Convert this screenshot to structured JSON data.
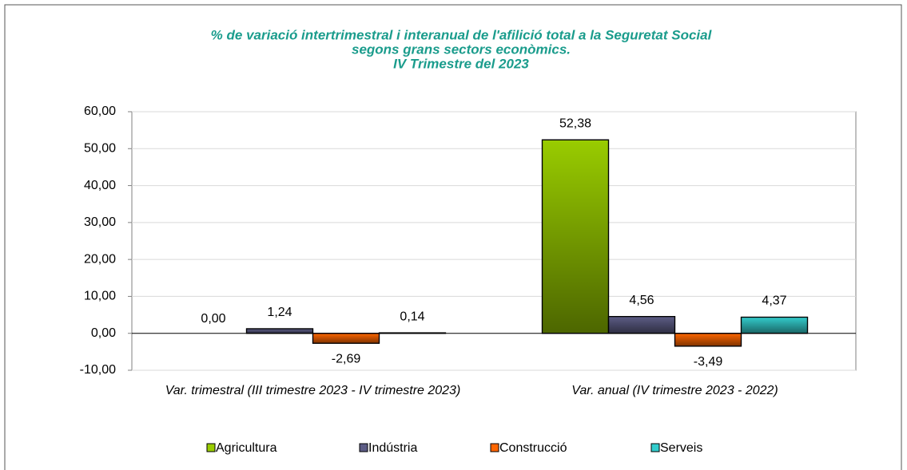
{
  "chart_data": {
    "type": "bar",
    "title": [
      "% de variació intertrimestral i interanual de l'afilició total a la Seguretat Social",
      "segons grans sectors econòmics.",
      "IV Trimestre del 2023"
    ],
    "categories": [
      "Var. trimestral (III trimestre 2023 - IV trimestre 2023)",
      "Var. anual (IV trimestre 2023 - 2022)"
    ],
    "series": [
      {
        "name": "Agricultura",
        "color": "#99cc00",
        "values": [
          0.0,
          52.38
        ],
        "value_labels": [
          "0,00",
          "52,38"
        ]
      },
      {
        "name": "Indústria",
        "color": "#5c5c85",
        "values": [
          1.24,
          4.56
        ],
        "value_labels": [
          "1,24",
          "4,56"
        ]
      },
      {
        "name": "Construcció",
        "color": "#ff6600",
        "values": [
          -2.69,
          -3.49
        ],
        "value_labels": [
          "-2,69",
          "-3,49"
        ]
      },
      {
        "name": "Serveis",
        "color": "#33cccc",
        "values": [
          0.14,
          4.37
        ],
        "value_labels": [
          "0,14",
          "4,37"
        ]
      }
    ],
    "ylim": [
      -10,
      60
    ],
    "yticks": [
      {
        "value": -10,
        "label": "-10,00"
      },
      {
        "value": 0,
        "label": "0,00"
      },
      {
        "value": 10,
        "label": "10,00"
      },
      {
        "value": 20,
        "label": "20,00"
      },
      {
        "value": 30,
        "label": "30,00"
      },
      {
        "value": 40,
        "label": "40,00"
      },
      {
        "value": 50,
        "label": "50,00"
      },
      {
        "value": 60,
        "label": "60,00"
      }
    ],
    "grid": true,
    "legend": "bottom"
  }
}
